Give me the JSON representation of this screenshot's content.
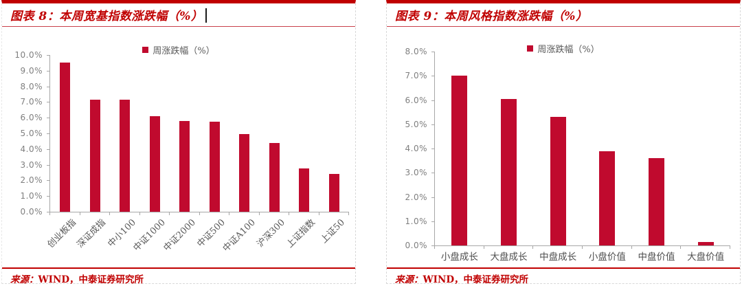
{
  "colors": {
    "accent_red": "#C00000",
    "bar_red": "#C00A2E",
    "axis_gray": "#a6a6a6",
    "tick_label_gray": "#7f7f7f",
    "category_gray": "#595959"
  },
  "chart_data": [
    {
      "type": "bar",
      "title": "图表 8：本周宽基指数涨跌幅（%）",
      "legend": "周涨跌幅（%）",
      "categories": [
        "创业板指",
        "深证成指",
        "中小100",
        "中证1000",
        "中证2000",
        "中证500",
        "中证A100",
        "沪深300",
        "上证指数",
        "上证50"
      ],
      "values": [
        9.5,
        7.15,
        7.15,
        6.1,
        5.8,
        5.75,
        4.95,
        4.4,
        2.75,
        2.4
      ],
      "ylim": [
        0,
        10
      ],
      "yticks": [
        "0.0%",
        "1.0%",
        "2.0%",
        "3.0%",
        "4.0%",
        "5.0%",
        "6.0%",
        "7.0%",
        "8.0%",
        "9.0%",
        "10.0%"
      ],
      "xlabel": "",
      "ylabel": "",
      "grid": false,
      "legend_position": "top",
      "bar_color": "#C00A2E",
      "source_prefix": "来源：",
      "source_text": "WIND，中泰证券研究所"
    },
    {
      "type": "bar",
      "title": "图表 9：本周风格指数涨跌幅（%）",
      "legend": "周涨跌幅（%）",
      "categories": [
        "小盘成长",
        "大盘成长",
        "中盘成长",
        "小盘价值",
        "中盘价值",
        "大盘价值"
      ],
      "values": [
        7.0,
        6.05,
        5.3,
        3.9,
        3.6,
        0.15
      ],
      "ylim": [
        0,
        8
      ],
      "yticks": [
        "0.0%",
        "1.0%",
        "2.0%",
        "3.0%",
        "4.0%",
        "5.0%",
        "6.0%",
        "7.0%",
        "8.0%"
      ],
      "xlabel": "",
      "ylabel": "",
      "grid": false,
      "legend_position": "top",
      "bar_color": "#C00A2E",
      "source_prefix": "来源：",
      "source_text": "WIND，中泰证券研究所"
    }
  ]
}
